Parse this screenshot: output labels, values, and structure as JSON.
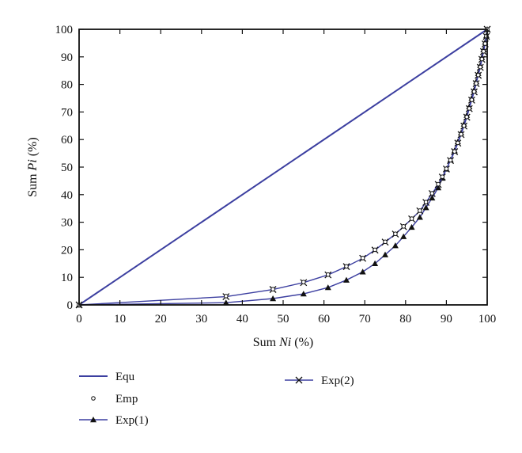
{
  "chart_data": {
    "type": "line",
    "title": "",
    "xlabel": {
      "prefix": "Sum ",
      "var": "Ni",
      "suffix": " (%)"
    },
    "ylabel": {
      "prefix": "Sum ",
      "var": "Pi",
      "suffix": " (%)"
    },
    "xlim": [
      0,
      100
    ],
    "ylim": [
      0,
      100
    ],
    "xticks": [
      0,
      10,
      20,
      30,
      40,
      50,
      60,
      70,
      80,
      90,
      100
    ],
    "yticks": [
      0,
      10,
      20,
      30,
      40,
      50,
      60,
      70,
      80,
      90,
      100
    ],
    "grid": false,
    "legend_position": "below",
    "series": [
      {
        "name": "Equ",
        "style": "line",
        "color": "#3c3fa0",
        "x": [
          0,
          100
        ],
        "y": [
          0,
          100
        ]
      },
      {
        "name": "Emp",
        "style": "open-circle",
        "color": "#111111",
        "x": [
          0,
          36,
          47.5,
          55,
          61,
          65.5,
          69.5,
          72.5,
          75,
          77.5,
          79.5,
          81.5,
          83.5,
          85,
          86.5,
          88,
          89,
          90,
          91,
          92,
          92.8,
          93.6,
          94.3,
          95,
          95.6,
          96.2,
          96.8,
          97.3,
          97.8,
          98.3,
          98.7,
          99.1,
          99.5,
          99.8,
          100
        ],
        "y": [
          0,
          3.2,
          5.7,
          8.3,
          11,
          14,
          17,
          20,
          22.9,
          25.8,
          28.5,
          31.3,
          34.2,
          37.3,
          40.5,
          43.8,
          46.5,
          49.4,
          52.5,
          55.7,
          58.8,
          61.9,
          65,
          68.2,
          71.3,
          74.4,
          77.4,
          80.4,
          83.4,
          86.3,
          89.2,
          92,
          94.8,
          97.5,
          100
        ]
      },
      {
        "name": "Exp(1)",
        "style": "line-triangle",
        "color": "#3c3fa0",
        "x": [
          0,
          36,
          47.5,
          55,
          61,
          65.5,
          69.5,
          72.5,
          75,
          77.5,
          79.5,
          81.5,
          83.5,
          85,
          86.5,
          88,
          89,
          90,
          91,
          92,
          92.8,
          93.6,
          94.3,
          95,
          95.6,
          96.2,
          96.8,
          97.3,
          97.8,
          98.3,
          98.7,
          99.1,
          99.5,
          99.8,
          100
        ],
        "y": [
          0,
          0.8,
          2.3,
          4,
          6.3,
          9,
          12,
          15,
          18.2,
          21.5,
          24.8,
          28.2,
          31.8,
          35.3,
          38.8,
          42.5,
          46,
          49.3,
          52.6,
          56,
          59.2,
          62.4,
          65.6,
          68.8,
          71.9,
          75,
          78,
          81,
          84,
          86.9,
          89.8,
          92.6,
          95.3,
          97.7,
          100
        ]
      },
      {
        "name": "Exp(2)",
        "style": "line-cross",
        "color": "#3c3fa0",
        "x": [
          0,
          36,
          47.5,
          55,
          61,
          65.5,
          69.5,
          72.5,
          75,
          77.5,
          79.5,
          81.5,
          83.5,
          85,
          86.5,
          88,
          89,
          90,
          91,
          92,
          92.8,
          93.6,
          94.3,
          95,
          95.6,
          96.2,
          96.8,
          97.3,
          97.8,
          98.3,
          98.7,
          99.1,
          99.5,
          99.8,
          100
        ],
        "y": [
          0,
          3,
          5.6,
          8.1,
          10.9,
          13.9,
          16.9,
          19.9,
          22.8,
          25.7,
          28.4,
          31.2,
          34.1,
          37.2,
          40.4,
          43.7,
          46.4,
          49.3,
          52.4,
          55.6,
          58.7,
          61.8,
          64.9,
          68.1,
          71.2,
          74.3,
          77.3,
          80.3,
          83.3,
          86.2,
          89.1,
          91.9,
          94.7,
          97.4,
          100
        ]
      }
    ]
  }
}
